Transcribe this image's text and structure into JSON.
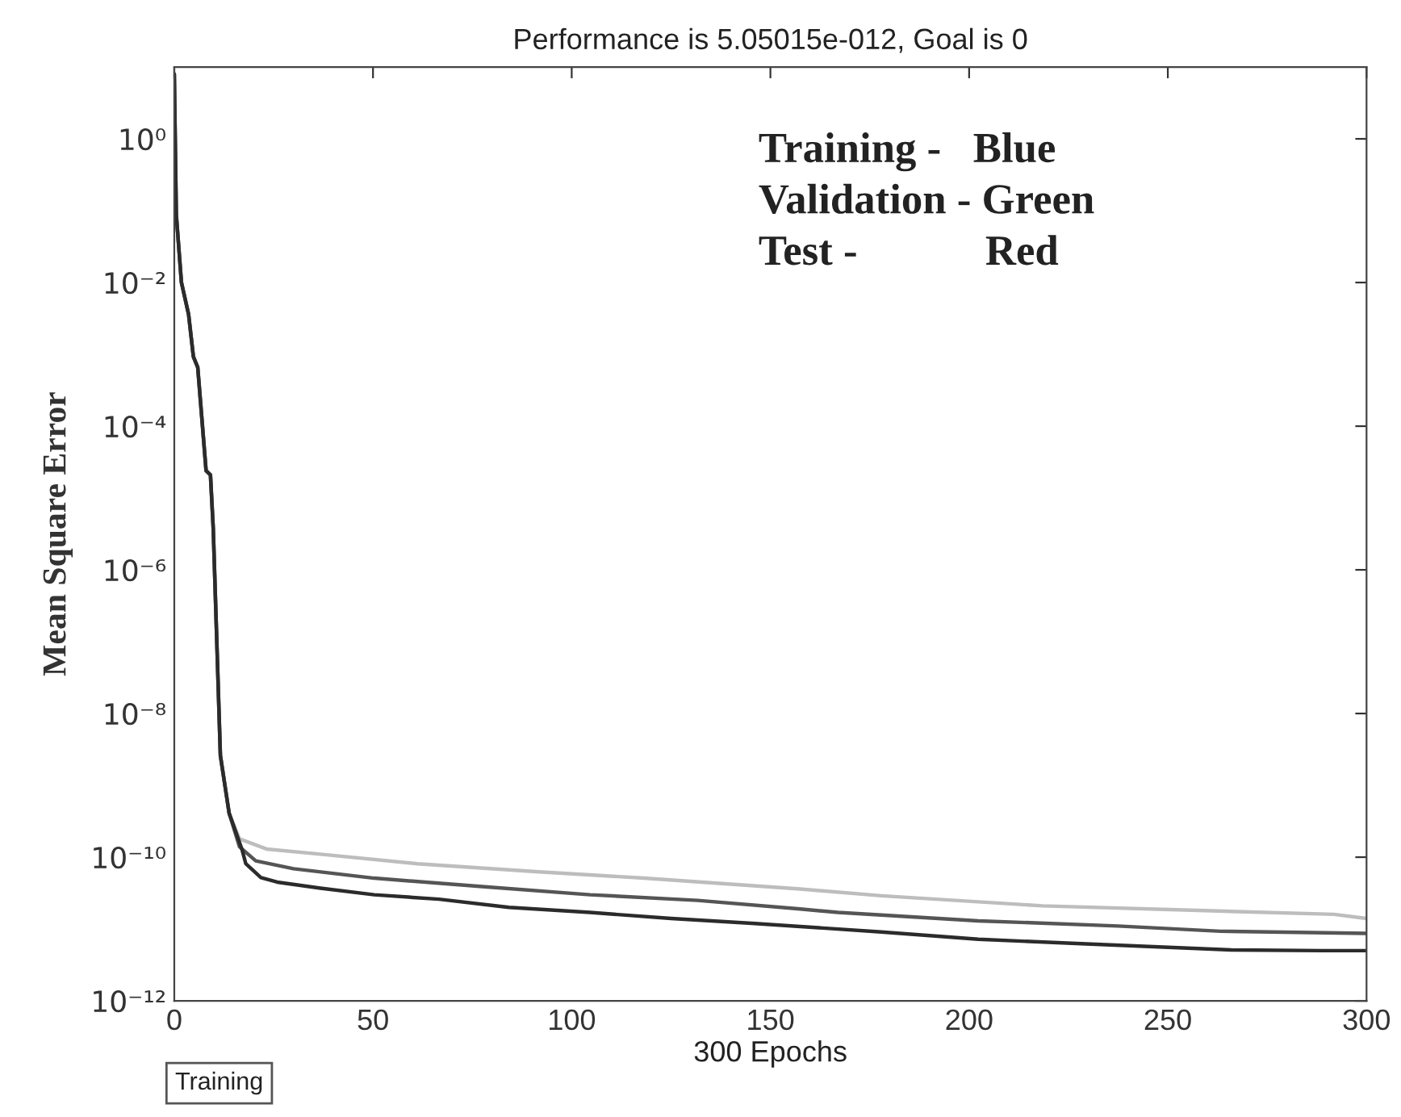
{
  "chart_data": {
    "type": "line",
    "title": "Performance is 5.05015e-012, Goal is 0",
    "xlabel": "300 Epochs",
    "ylabel": "Mean Square Error",
    "log": "y",
    "xlim": [
      0,
      300
    ],
    "xticks": [
      0,
      50,
      100,
      150,
      200,
      250,
      300
    ],
    "ylim": [
      1e-12,
      10
    ],
    "yticks": [
      {
        "value": 1e-12,
        "label": "10⁻¹²"
      },
      {
        "value": 1e-10,
        "label": "10⁻¹⁰"
      },
      {
        "value": 1e-08,
        "label": "10⁻⁸"
      },
      {
        "value": 1e-06,
        "label": "10⁻⁶"
      },
      {
        "value": 0.0001,
        "label": "10⁻⁴"
      },
      {
        "value": 0.01,
        "label": "10⁻²"
      },
      {
        "value": 1,
        "label": "10⁰"
      }
    ],
    "grid": false,
    "marker": "none",
    "line_style": "solid",
    "series": [
      {
        "color": "#bdbdbd",
        "x": [
          0,
          0.5,
          1.8,
          3.6,
          4.8,
          5.9,
          8.0,
          9.1,
          9.8,
          11.6,
          13.8,
          16.4,
          23.2,
          36.8,
          61.2,
          91,
          118.2,
          157.5,
          177.9,
          218.5,
          259.3,
          291.8,
          300
        ],
        "values": [
          8,
          0.089,
          0.01,
          0.0036,
          0.00093,
          0.00066,
          2.4e-05,
          2.1e-05,
          3.8e-06,
          2.6e-09,
          4.1e-10,
          1.8e-10,
          1.3e-10,
          1.1e-10,
          8.1e-11,
          6.3e-11,
          5.1e-11,
          3.6e-11,
          2.9e-11,
          2.1e-11,
          1.8e-11,
          1.6e-11,
          1.4e-11
        ]
      },
      {
        "color": "#555555",
        "x": [
          0,
          0.5,
          1.8,
          3.6,
          4.8,
          5.9,
          8.0,
          9.1,
          9.8,
          11.6,
          13.8,
          16.4,
          20.5,
          30,
          50.3,
          77.5,
          104.6,
          131.7,
          157.5,
          167,
          202.3,
          237.5,
          263.3,
          300
        ],
        "values": [
          8,
          0.089,
          0.01,
          0.0036,
          0.00093,
          0.00066,
          2.4e-05,
          2.1e-05,
          3.8e-06,
          2.6e-09,
          4.1e-10,
          1.4e-10,
          8.9e-11,
          6.9e-11,
          5.1e-11,
          3.9e-11,
          3e-11,
          2.5e-11,
          1.9e-11,
          1.7e-11,
          1.3e-11,
          1.1e-11,
          9.3e-12,
          8.7e-12
        ]
      },
      {
        "color": "#2b2b2b",
        "x": [
          0,
          0.5,
          1.8,
          3.6,
          4.8,
          5.9,
          8.0,
          9.1,
          9.8,
          11.6,
          13.8,
          17.0,
          18,
          21.8,
          25.9,
          36.8,
          50.3,
          66.6,
          84.2,
          104.6,
          125,
          145.3,
          177.9,
          202.3,
          229.4,
          266,
          289,
          300
        ],
        "values": [
          8,
          0.089,
          0.01,
          0.0036,
          0.00093,
          0.00066,
          2.4e-05,
          2.1e-05,
          3.8e-06,
          2.6e-09,
          4.1e-10,
          1.3e-10,
          8.1e-11,
          5.2e-11,
          4.5e-11,
          3.7e-11,
          3e-11,
          2.6e-11,
          2e-11,
          1.7e-11,
          1.4e-11,
          1.2e-11,
          9.1e-12,
          7.2e-12,
          6.2e-12,
          5.1e-12,
          5e-12,
          5e-12
        ]
      }
    ],
    "annotations": [
      "Training -   Blue",
      "Validation - Green",
      "Test -            Red",
      "Training"
    ]
  }
}
